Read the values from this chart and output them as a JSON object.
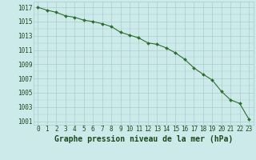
{
  "hours": [
    0,
    1,
    2,
    3,
    4,
    5,
    6,
    7,
    8,
    9,
    10,
    11,
    12,
    13,
    14,
    15,
    16,
    17,
    18,
    19,
    20,
    21,
    22,
    23
  ],
  "values": [
    1017.0,
    1016.6,
    1016.3,
    1015.8,
    1015.6,
    1015.2,
    1015.0,
    1014.7,
    1014.3,
    1013.5,
    1013.1,
    1012.7,
    1012.0,
    1011.8,
    1011.3,
    1010.6,
    1009.7,
    1008.5,
    1007.6,
    1006.8,
    1005.2,
    1004.0,
    1003.5,
    1001.3
  ],
  "line_color": "#2d6e2d",
  "marker": "D",
  "bg_color": "#cceaea",
  "grid_color": "#aacccc",
  "xlabel": "Graphe pression niveau de la mer (hPa)",
  "yticks": [
    1001,
    1003,
    1005,
    1007,
    1009,
    1011,
    1013,
    1015,
    1017
  ],
  "ylim": [
    1000.5,
    1017.8
  ],
  "xlim": [
    -0.5,
    23.5
  ],
  "tick_color": "#1a4a1a",
  "xlabel_fontsize": 7,
  "tick_fontsize": 5.5
}
